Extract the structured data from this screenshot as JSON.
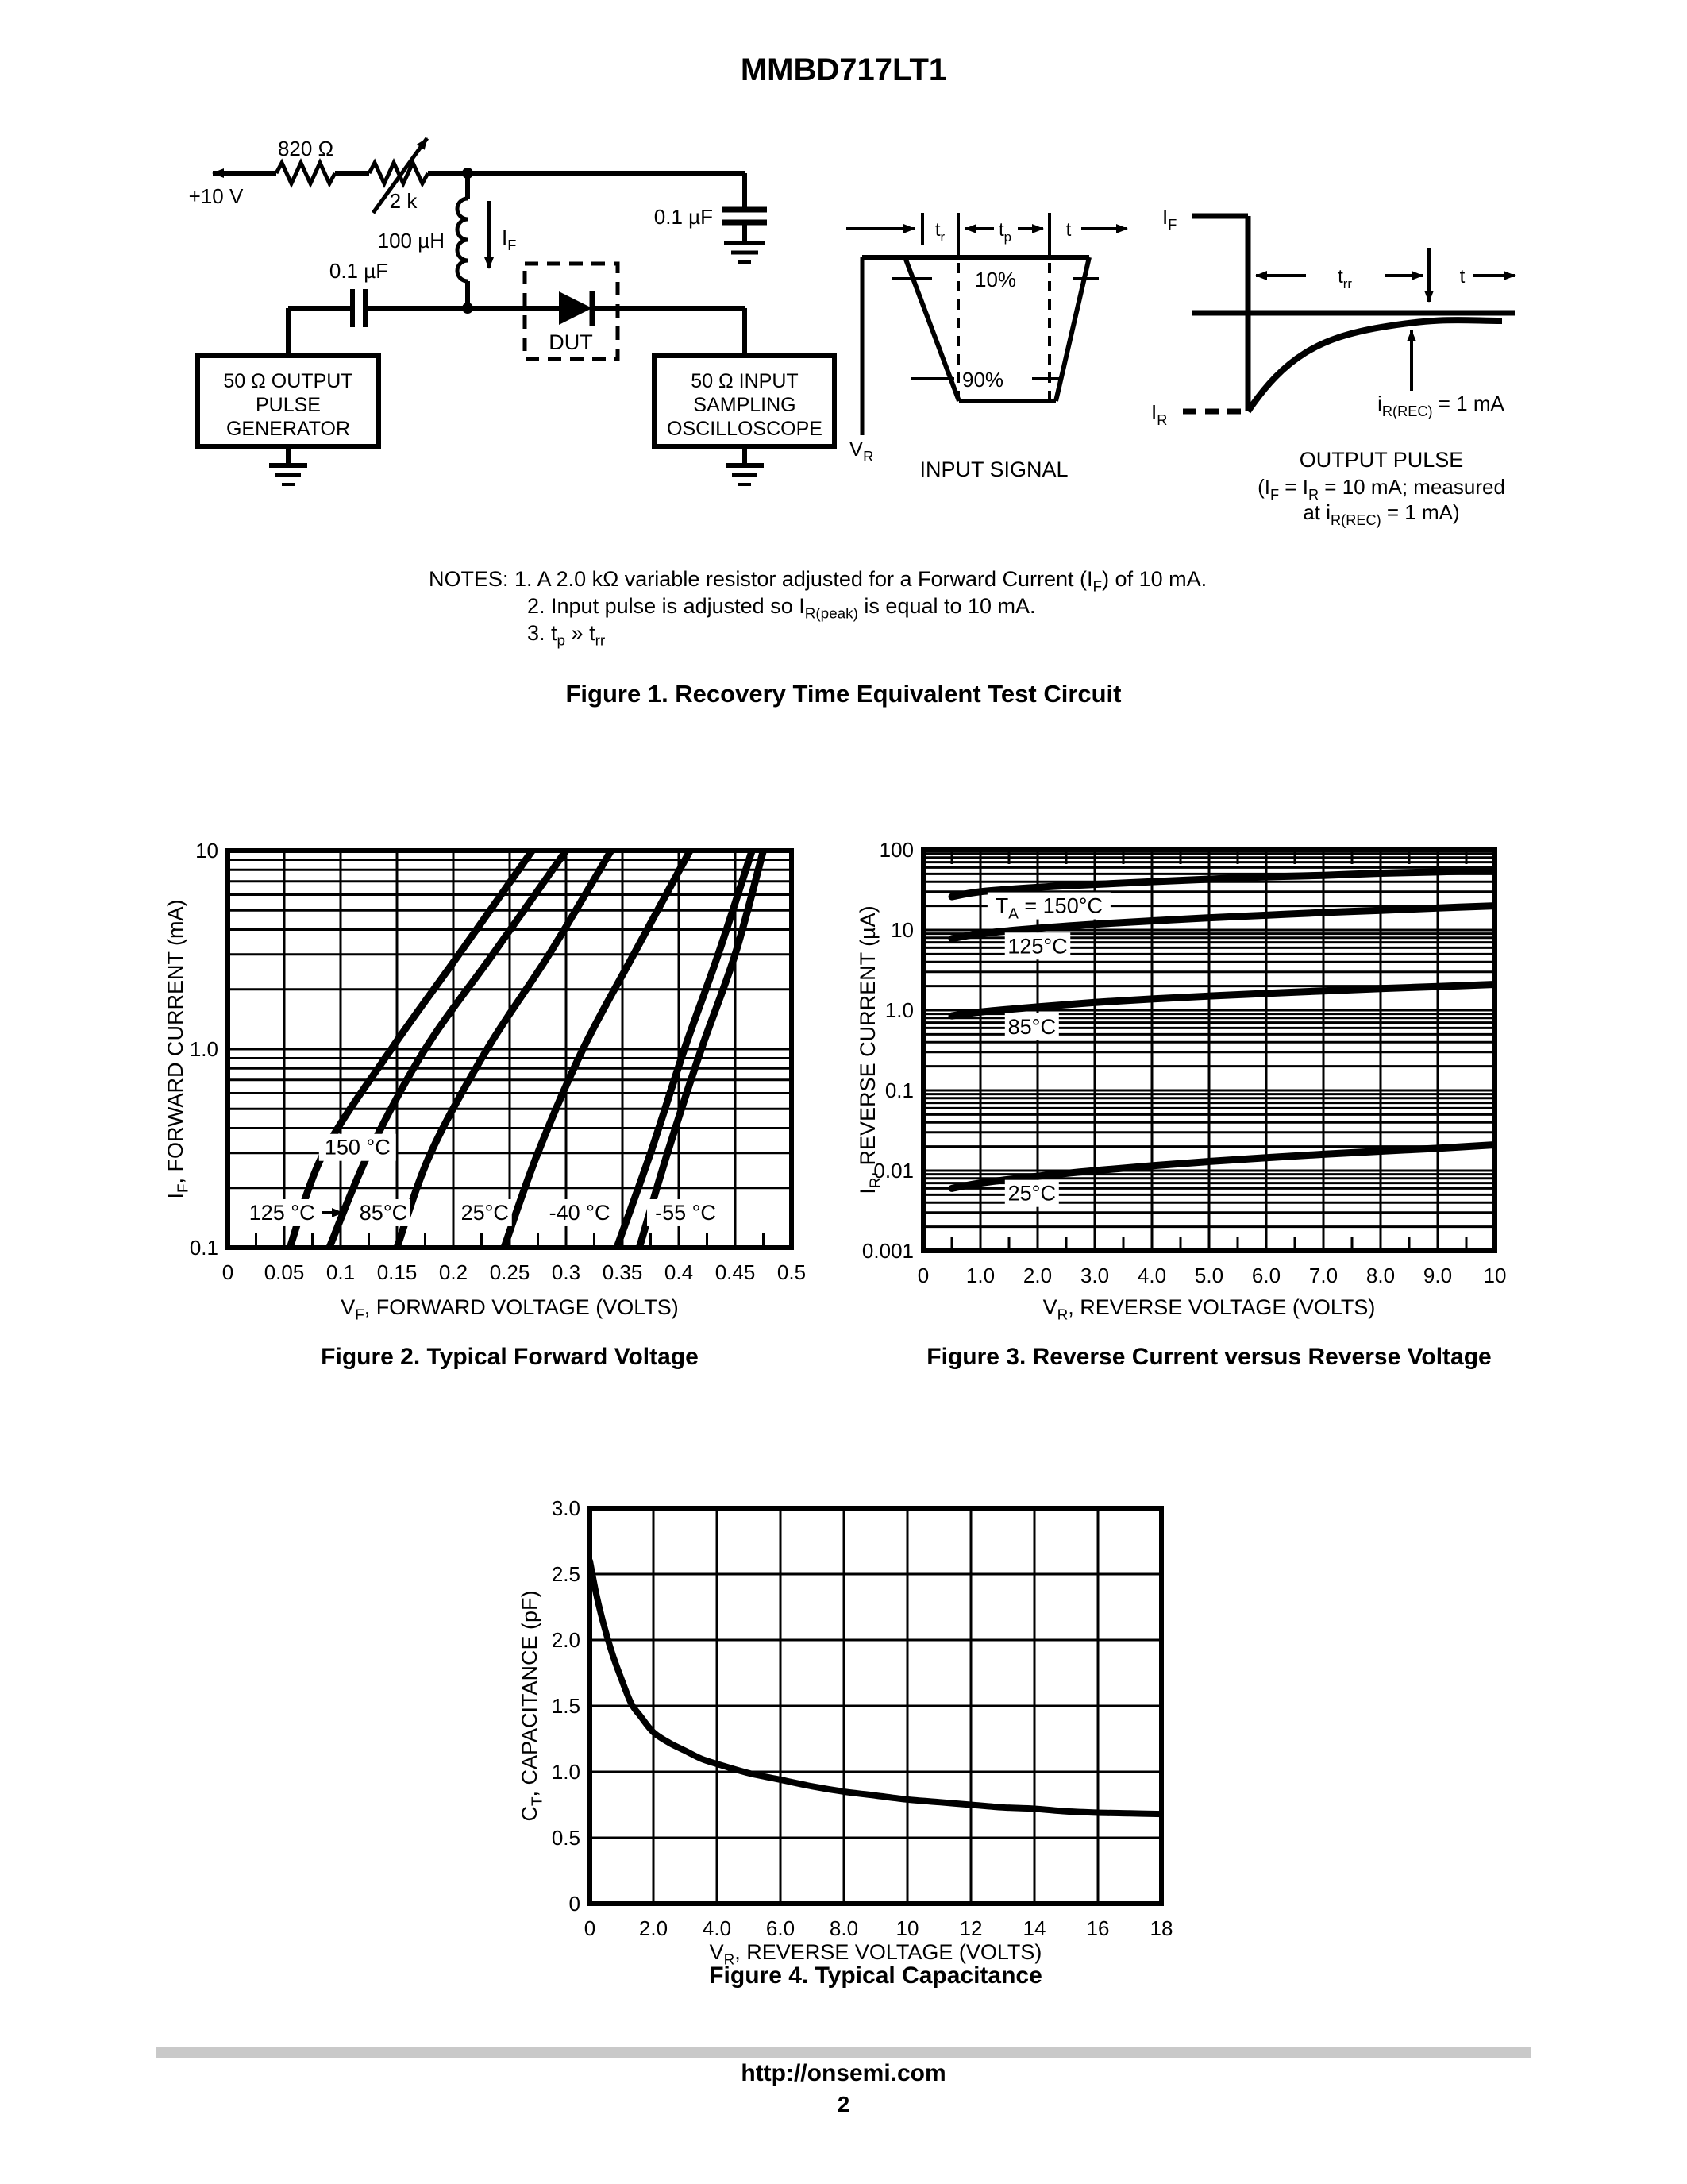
{
  "page": {
    "title": "MMBD717LT1",
    "footer_url": "http://onsemi.com",
    "page_number": "2"
  },
  "figure1": {
    "caption": "Figure 1. Recovery Time Equivalent Test Circuit",
    "notes": [
      "NOTES: 1. A 2.0 kΩ variable resistor adjusted for a Forward Current (I~F~) of 10 mA.",
      "2. Input pulse is adjusted so I~R(peak)~ is equal to 10 mA.",
      "3. t~p~ » t~rr~"
    ],
    "circuit": {
      "supply": "+10 V",
      "r_fixed": "820 Ω",
      "r_variable": "2 k",
      "inductor": "100 µH",
      "i_f": "I~F~",
      "c_series": "0.1 µF",
      "c_bypass": "0.1 µF",
      "dut": "DUT",
      "generator": [
        "50 Ω OUTPUT",
        "PULSE",
        "GENERATOR"
      ],
      "scope": [
        "50 Ω INPUT",
        "SAMPLING",
        "OSCILLOSCOPE"
      ],
      "input_signal": {
        "tr": "t~r~",
        "tp": "t~p~",
        "t": "t",
        "p10": "10%",
        "p90": "90%",
        "vr": "V~R~",
        "caption": "INPUT SIGNAL"
      },
      "output_pulse": {
        "i_f": "I~F~",
        "i_r": "I~R~",
        "trr": "t~rr~",
        "t": "t",
        "irec": "i~R(REC)~ = 1 mA",
        "caption": "OUTPUT PULSE",
        "cond1": "(I~F~ = I~R~ = 10 mA; measured",
        "cond2": "at i~R(REC)~ = 1 mA)"
      }
    }
  },
  "chart_data": [
    {
      "id": "figure2",
      "type": "line",
      "title": "Figure 2. Typical Forward Voltage",
      "xlabel": "V~F~, FORWARD VOLTAGE (VOLTS)",
      "ylabel": "I~F~, FORWARD CURRENT (mA)",
      "x_axis": {
        "min": 0,
        "max": 0.5,
        "tick_values": [
          0,
          0.05,
          0.1,
          0.15,
          0.2,
          0.25,
          0.3,
          0.35,
          0.4,
          0.45,
          0.5
        ],
        "tick_labels": [
          "0",
          "0.05",
          "0.1",
          "0.15",
          "0.2",
          "0.25",
          "0.3",
          "0.35",
          "0.4",
          "0.45",
          "0.5"
        ],
        "minor_step": 0.025
      },
      "y_axis": {
        "scale": "log",
        "min": 0.1,
        "max": 10,
        "ticks": [
          {
            "v": 10,
            "label": "10"
          },
          {
            "v": 1,
            "label": "1.0"
          },
          {
            "v": 0.1,
            "label": "0.1"
          }
        ]
      },
      "series": [
        {
          "name": "150 °C",
          "points": [
            [
              0.055,
              0.1
            ],
            [
              0.085,
              0.3
            ],
            [
              0.145,
              1
            ],
            [
              0.205,
              3
            ],
            [
              0.27,
              10
            ]
          ]
        },
        {
          "name": "125 °C",
          "points": [
            [
              0.09,
              0.1
            ],
            [
              0.125,
              0.3
            ],
            [
              0.175,
              1
            ],
            [
              0.235,
              3
            ],
            [
              0.3,
              10
            ]
          ]
        },
        {
          "name": "85°C",
          "points": [
            [
              0.15,
              0.1
            ],
            [
              0.18,
              0.3
            ],
            [
              0.23,
              1
            ],
            [
              0.285,
              3
            ],
            [
              0.34,
              10
            ]
          ]
        },
        {
          "name": "25°C",
          "points": [
            [
              0.245,
              0.1
            ],
            [
              0.275,
              0.3
            ],
            [
              0.315,
              1
            ],
            [
              0.36,
              3
            ],
            [
              0.41,
              10
            ]
          ]
        },
        {
          "name": "-40 °C",
          "points": [
            [
              0.345,
              0.1
            ],
            [
              0.375,
              0.3
            ],
            [
              0.405,
              1
            ],
            [
              0.435,
              3
            ],
            [
              0.465,
              10
            ]
          ]
        },
        {
          "name": "-55 °C",
          "points": [
            [
              0.365,
              0.1
            ],
            [
              0.39,
              0.3
            ],
            [
              0.42,
              1
            ],
            [
              0.45,
              3
            ],
            [
              0.475,
              10
            ]
          ]
        }
      ],
      "labels": [
        {
          "text": "150 °C",
          "x": 0.115,
          "y": 0.32
        },
        {
          "text": "125 °C",
          "x": 0.048,
          "y": 0.15,
          "arrow_x2": 0.102
        },
        {
          "text": "85°C",
          "x": 0.138,
          "y": 0.15
        },
        {
          "text": "25°C",
          "x": 0.228,
          "y": 0.15
        },
        {
          "text": "-40 °C",
          "x": 0.312,
          "y": 0.15
        },
        {
          "text": "-55 °C",
          "x": 0.406,
          "y": 0.15
        }
      ]
    },
    {
      "id": "figure3",
      "type": "line",
      "title": "Figure 3. Reverse Current versus Reverse Voltage",
      "xlabel": "V~R~, REVERSE VOLTAGE (VOLTS)",
      "ylabel": "I~R~, REVERSE CURRENT (µA)",
      "x_axis": {
        "min": 0,
        "max": 10,
        "tick_values": [
          0,
          1,
          2,
          3,
          4,
          5,
          6,
          7,
          8,
          9,
          10
        ],
        "tick_labels": [
          "0",
          "1.0",
          "2.0",
          "3.0",
          "4.0",
          "5.0",
          "6.0",
          "7.0",
          "8.0",
          "9.0",
          "10"
        ],
        "minor_step": 0.5
      },
      "y_axis": {
        "scale": "log",
        "min": 0.001,
        "max": 100,
        "ticks": [
          {
            "v": 100,
            "label": "100"
          },
          {
            "v": 10,
            "label": "10"
          },
          {
            "v": 1,
            "label": "1.0"
          },
          {
            "v": 0.1,
            "label": "0.1"
          },
          {
            "v": 0.01,
            "label": "0.01"
          },
          {
            "v": 0.001,
            "label": "0.001"
          }
        ]
      },
      "series": [
        {
          "name": "T_A = 150°C",
          "points": [
            [
              0.5,
              26
            ],
            [
              1,
              30
            ],
            [
              2,
              34
            ],
            [
              3,
              37
            ],
            [
              4,
              40
            ],
            [
              5,
              43
            ],
            [
              6,
              46
            ],
            [
              7,
              48
            ],
            [
              8,
              51
            ],
            [
              9,
              53
            ],
            [
              10,
              56
            ]
          ]
        },
        {
          "name": "125°C",
          "points": [
            [
              0.5,
              7.8
            ],
            [
              1,
              9
            ],
            [
              2,
              10.5
            ],
            [
              3,
              11.8
            ],
            [
              4,
              13
            ],
            [
              5,
              14.2
            ],
            [
              6,
              15.3
            ],
            [
              7,
              16.5
            ],
            [
              8,
              17.6
            ],
            [
              9,
              18.8
            ],
            [
              10,
              20
            ]
          ]
        },
        {
          "name": "85°C",
          "points": [
            [
              0.5,
              0.85
            ],
            [
              1,
              0.95
            ],
            [
              2,
              1.1
            ],
            [
              3,
              1.25
            ],
            [
              4,
              1.38
            ],
            [
              5,
              1.5
            ],
            [
              6,
              1.62
            ],
            [
              7,
              1.74
            ],
            [
              8,
              1.86
            ],
            [
              9,
              1.97
            ],
            [
              10,
              2.1
            ]
          ]
        },
        {
          "name": "25°C",
          "points": [
            [
              0.5,
              0.006
            ],
            [
              1,
              0.007
            ],
            [
              2,
              0.0085
            ],
            [
              3,
              0.01
            ],
            [
              4,
              0.0115
            ],
            [
              5,
              0.013
            ],
            [
              6,
              0.0145
            ],
            [
              7,
              0.016
            ],
            [
              8,
              0.0175
            ],
            [
              9,
              0.019
            ],
            [
              10,
              0.021
            ]
          ]
        }
      ],
      "labels": [
        {
          "text": "T~A~ = 150°C",
          "x": 2.2,
          "y": 20
        },
        {
          "text": "125°C",
          "x": 2.0,
          "y": 6.3
        },
        {
          "text": "85°C",
          "x": 1.9,
          "y": 0.62
        },
        {
          "text": "25°C",
          "x": 1.9,
          "y": 0.0052
        }
      ]
    },
    {
      "id": "figure4",
      "type": "line",
      "title": "Figure 4. Typical Capacitance",
      "xlabel": "V~R~, REVERSE VOLTAGE (VOLTS)",
      "ylabel": "C~T~, CAPACITANCE (pF)",
      "x_axis": {
        "min": 0,
        "max": 18,
        "tick_values": [
          0,
          2,
          4,
          6,
          8,
          10,
          12,
          14,
          16,
          18
        ],
        "tick_labels": [
          "0",
          "2.0",
          "4.0",
          "6.0",
          "8.0",
          "10",
          "12",
          "14",
          "16",
          "18"
        ],
        "minor_step": null
      },
      "y_axis": {
        "scale": "linear",
        "min": 0,
        "max": 3.0,
        "grid_step": 0.5,
        "ticks": [
          {
            "v": 3,
            "label": "3.0"
          },
          {
            "v": 2.5,
            "label": "2.5"
          },
          {
            "v": 2,
            "label": "2.0"
          },
          {
            "v": 1.5,
            "label": "1.5"
          },
          {
            "v": 1,
            "label": "1.0"
          },
          {
            "v": 0.5,
            "label": "0.5"
          },
          {
            "v": 0,
            "label": "0"
          }
        ]
      },
      "series": [
        {
          "name": "capacitance",
          "points": [
            [
              0,
              2.6
            ],
            [
              0.2,
              2.35
            ],
            [
              0.4,
              2.15
            ],
            [
              0.7,
              1.9
            ],
            [
              1,
              1.7
            ],
            [
              1.3,
              1.52
            ],
            [
              1.6,
              1.42
            ],
            [
              2,
              1.3
            ],
            [
              2.5,
              1.22
            ],
            [
              3,
              1.16
            ],
            [
              3.5,
              1.1
            ],
            [
              4,
              1.06
            ],
            [
              5,
              0.99
            ],
            [
              6,
              0.94
            ],
            [
              7,
              0.89
            ],
            [
              8,
              0.85
            ],
            [
              9,
              0.82
            ],
            [
              10,
              0.79
            ],
            [
              11,
              0.77
            ],
            [
              12,
              0.75
            ],
            [
              13,
              0.73
            ],
            [
              14,
              0.72
            ],
            [
              15,
              0.7
            ],
            [
              16,
              0.69
            ],
            [
              17,
              0.685
            ],
            [
              18,
              0.68
            ]
          ]
        }
      ],
      "labels": []
    }
  ]
}
